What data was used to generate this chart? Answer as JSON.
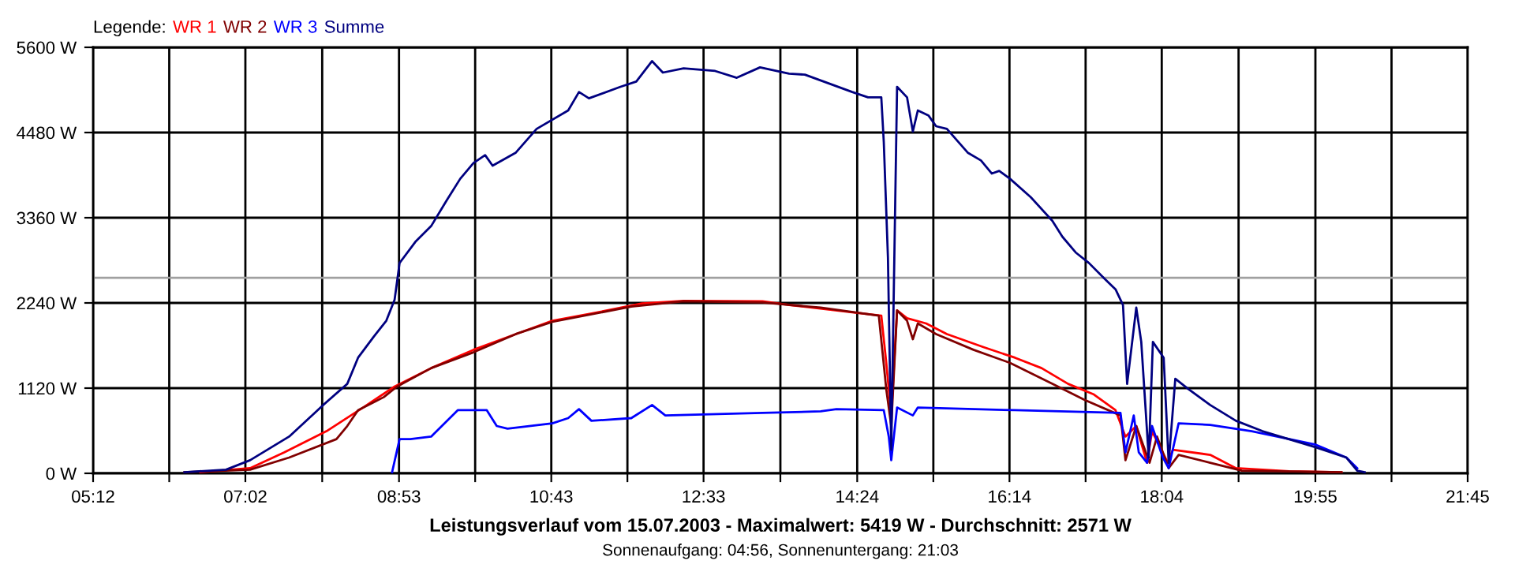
{
  "chart_data": {
    "type": "line",
    "title": "Leistungsverlauf vom 15.07.2003 - Maximalwert: 5419 W - Durchschnitt: 2571 W",
    "subtitle": "Sonnenaufgang: 04:56, Sonnenuntergang: 21:03",
    "legend_title": "Legende:",
    "legend": "top left",
    "grid": true,
    "marker": "none",
    "line_style": "solid",
    "xlim": [
      5.2,
      21.75
    ],
    "xticks": [
      {
        "value": 5.2,
        "label": "05:12"
      },
      {
        "value": 6.1167,
        "label": null
      },
      {
        "value": 7.0333,
        "label": "07:02"
      },
      {
        "value": 7.9583,
        "label": null
      },
      {
        "value": 8.8833,
        "label": "08:53"
      },
      {
        "value": 9.8,
        "label": null
      },
      {
        "value": 10.7167,
        "label": "10:43"
      },
      {
        "value": 11.6333,
        "label": null
      },
      {
        "value": 12.55,
        "label": "12:33"
      },
      {
        "value": 13.475,
        "label": null
      },
      {
        "value": 14.4,
        "label": "14:24"
      },
      {
        "value": 15.3167,
        "label": null
      },
      {
        "value": 16.2333,
        "label": "16:14"
      },
      {
        "value": 17.15,
        "label": null
      },
      {
        "value": 18.0667,
        "label": "18:04"
      },
      {
        "value": 18.9917,
        "label": null
      },
      {
        "value": 19.9167,
        "label": "19:55"
      },
      {
        "value": 20.8333,
        "label": null
      },
      {
        "value": 21.75,
        "label": "21:45"
      }
    ],
    "ylim": [
      0,
      5600
    ],
    "yticks": [
      {
        "value": 0,
        "label": "0 W"
      },
      {
        "value": 1120,
        "label": "1120 W"
      },
      {
        "value": 2240,
        "label": "2240 W"
      },
      {
        "value": 3360,
        "label": "3360 W"
      },
      {
        "value": 4480,
        "label": "4480 W"
      },
      {
        "value": 5600,
        "label": "5600 W"
      }
    ],
    "ref_lines": [
      {
        "axis": "y",
        "value": 2571,
        "color": "#a0a0a0"
      }
    ],
    "series": [
      {
        "name": "WR 1",
        "color": "#ff0000",
        "x": [
          6.49,
          7.09,
          7.5,
          8.01,
          8.45,
          8.83,
          9.27,
          9.78,
          10.29,
          10.73,
          11.24,
          11.81,
          12.31,
          13.26,
          13.58,
          14.4,
          14.69,
          14.75,
          14.81,
          14.88,
          15.0,
          15.23,
          15.48,
          15.92,
          16.3,
          16.62,
          16.94,
          17.25,
          17.51,
          17.63,
          17.76,
          17.89,
          17.95,
          18.14,
          18.2,
          18.65,
          18.96,
          19.6,
          20.23
        ],
        "values": [
          15,
          68,
          276,
          554,
          865,
          1141,
          1383,
          1624,
          1831,
          2006,
          2109,
          2234,
          2267,
          2261,
          2213,
          2109,
          2074,
          1452,
          761,
          2142,
          2039,
          1970,
          1831,
          1659,
          1520,
          1383,
          1176,
          1037,
          830,
          483,
          622,
          139,
          554,
          139,
          311,
          243,
          68,
          27,
          15
        ]
      },
      {
        "name": "WR 2",
        "color": "#800000",
        "x": [
          6.3,
          7.09,
          7.56,
          8.13,
          8.26,
          8.39,
          8.7,
          8.86,
          9.27,
          9.78,
          10.29,
          10.73,
          11.68,
          12.31,
          13.26,
          13.96,
          14.66,
          14.75,
          14.81,
          14.88,
          15.0,
          15.07,
          15.13,
          15.35,
          15.8,
          16.24,
          16.75,
          17.13,
          17.57,
          17.63,
          17.76,
          17.92,
          18.01,
          18.15,
          18.27,
          18.65,
          19.03,
          20.23
        ],
        "values": [
          15,
          48,
          207,
          450,
          622,
          830,
          1002,
          1141,
          1383,
          1591,
          1831,
          1991,
          2192,
          2261,
          2246,
          2178,
          2074,
          1105,
          622,
          2142,
          2006,
          1763,
          1970,
          1831,
          1624,
          1452,
          1176,
          969,
          761,
          172,
          622,
          139,
          483,
          68,
          243,
          139,
          35,
          15
        ]
      },
      {
        "name": "WR 3",
        "color": "#0000ff",
        "x": [
          8.8,
          8.89,
          9.02,
          9.27,
          9.43,
          9.59,
          9.94,
          10.06,
          10.19,
          10.73,
          10.92,
          11.05,
          11.2,
          11.68,
          11.93,
          12.09,
          13.26,
          13.96,
          14.15,
          14.72,
          14.78,
          14.81,
          14.88,
          15.07,
          15.13,
          16.3,
          17.57,
          17.63,
          17.73,
          17.79,
          17.89,
          17.95,
          18.08,
          18.15,
          18.27,
          18.65,
          19.15,
          19.91,
          20.29,
          20.42
        ],
        "values": [
          15,
          450,
          450,
          483,
          657,
          830,
          830,
          622,
          587,
          657,
          726,
          844,
          691,
          726,
          898,
          761,
          794,
          815,
          844,
          830,
          483,
          172,
          865,
          761,
          865,
          830,
          794,
          276,
          761,
          276,
          139,
          622,
          207,
          68,
          657,
          637,
          554,
          380,
          207,
          68
        ]
      },
      {
        "name": "Summe",
        "color": "#000080",
        "x": [
          6.3,
          6.8,
          7.09,
          7.56,
          7.97,
          8.26,
          8.39,
          8.58,
          8.73,
          8.83,
          8.89,
          9.08,
          9.27,
          9.46,
          9.62,
          9.78,
          9.92,
          10.01,
          10.29,
          10.54,
          10.92,
          11.05,
          11.17,
          11.55,
          11.74,
          11.93,
          12.06,
          12.31,
          12.69,
          12.95,
          13.23,
          13.58,
          13.77,
          14.34,
          14.53,
          14.69,
          14.72,
          14.77,
          14.81,
          14.88,
          15.0,
          15.07,
          15.13,
          15.26,
          15.35,
          15.48,
          15.73,
          15.89,
          16.02,
          16.11,
          16.24,
          16.49,
          16.75,
          16.87,
          17.03,
          17.19,
          17.38,
          17.51,
          17.6,
          17.65,
          17.76,
          17.82,
          17.91,
          17.96,
          18.09,
          18.15,
          18.23,
          18.39,
          18.65,
          18.96,
          19.28,
          19.91,
          20.29,
          20.42,
          20.51
        ],
        "values": [
          15,
          48,
          172,
          483,
          898,
          1176,
          1520,
          1798,
          2006,
          2281,
          2765,
          3043,
          3250,
          3594,
          3872,
          4080,
          4183,
          4044,
          4216,
          4528,
          4770,
          5013,
          4930,
          5081,
          5150,
          5419,
          5268,
          5324,
          5289,
          5200,
          5337,
          5254,
          5241,
          5013,
          4943,
          4943,
          4355,
          2835,
          311,
          5081,
          4943,
          4494,
          4770,
          4702,
          4563,
          4528,
          4216,
          4113,
          3941,
          3976,
          3872,
          3630,
          3318,
          3111,
          2904,
          2765,
          2557,
          2420,
          2213,
          1176,
          2178,
          1728,
          207,
          1728,
          1520,
          139,
          1244,
          1105,
          898,
          691,
          554,
          346,
          207,
          35,
          15
        ]
      }
    ]
  }
}
